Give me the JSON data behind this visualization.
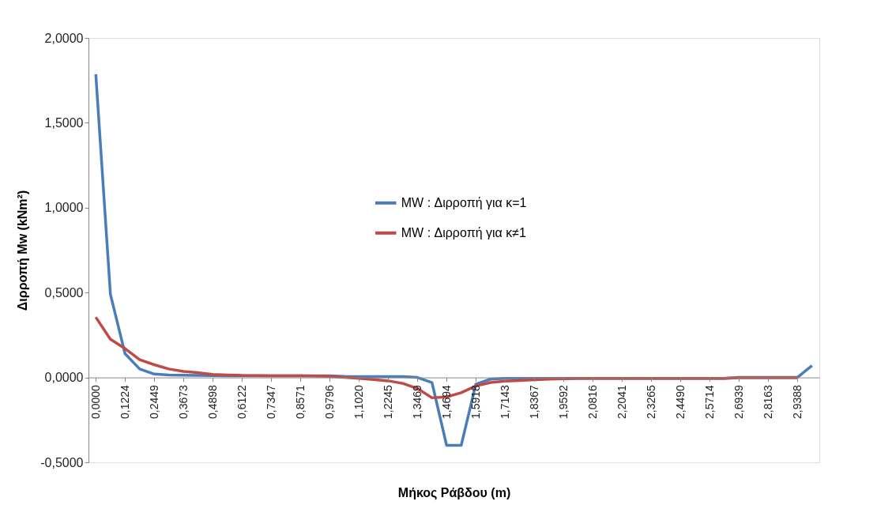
{
  "chart_data": {
    "type": "line",
    "xlabel": "Μήκος Ράβδου (m)",
    "ylabel": "Διρροπή Mw (kNm²)",
    "categories": [
      "0,0000",
      null,
      "0,1224",
      null,
      "0,2449",
      null,
      "0,3673",
      null,
      "0,4898",
      null,
      "0,6122",
      null,
      "0,7347",
      null,
      "0,8571",
      null,
      "0,9796",
      null,
      "1,1020",
      null,
      "1,2245",
      null,
      "1,3469",
      null,
      "1,4694",
      null,
      "1,5918",
      null,
      "1,7143",
      null,
      "1,8367",
      null,
      "1,9592",
      null,
      "2,0816",
      null,
      "2,2041",
      null,
      "2,3265",
      null,
      "2,4490",
      null,
      "2,5714",
      null,
      "2,6939",
      null,
      "2,8163",
      null,
      "2,9388",
      null
    ],
    "series": [
      {
        "name": "MW : Διρροπή για κ=1",
        "color": "#4a7ebb",
        "values": [
          1.786,
          0.49,
          0.14,
          0.05,
          0.02,
          0.015,
          0.013,
          0.012,
          0.011,
          0.01,
          0.01,
          0.01,
          0.01,
          0.01,
          0.01,
          0.01,
          0.01,
          0.006,
          0.005,
          0.005,
          0.005,
          0.005,
          0.0,
          -0.03,
          -0.4,
          -0.4,
          -0.04,
          -0.01,
          -0.005,
          -0.005,
          -0.005,
          -0.005,
          -0.005,
          -0.005,
          -0.005,
          -0.005,
          -0.005,
          -0.005,
          -0.005,
          -0.005,
          -0.005,
          -0.005,
          -0.005,
          -0.005,
          0,
          0,
          0,
          0,
          0,
          0.07
        ]
      },
      {
        "name": "MW : Διρροπή για κ≠1",
        "color": "#be4b48",
        "values": [
          0.355,
          0.225,
          0.17,
          0.105,
          0.075,
          0.05,
          0.035,
          0.028,
          0.018,
          0.015,
          0.012,
          0.011,
          0.01,
          0.01,
          0.01,
          0.009,
          0.006,
          0.0,
          -0.005,
          -0.012,
          -0.02,
          -0.035,
          -0.065,
          -0.12,
          -0.115,
          -0.09,
          -0.05,
          -0.03,
          -0.022,
          -0.018,
          -0.014,
          -0.01,
          -0.008,
          -0.005,
          -0.005,
          -0.005,
          -0.005,
          -0.005,
          -0.005,
          -0.005,
          -0.005,
          -0.005,
          -0.005,
          -0.005,
          -0.002,
          -0.002,
          -0.002,
          -0.002,
          -0.002,
          null
        ]
      }
    ],
    "ylim": [
      -0.5,
      2.0
    ],
    "yticks": [
      {
        "value": -0.5,
        "label": "-0,5000"
      },
      {
        "value": 0,
        "label": "0,0000"
      },
      {
        "value": 0.5,
        "label": "0,5000"
      },
      {
        "value": 1.0,
        "label": "1,0000"
      },
      {
        "value": 1.5,
        "label": "1,5000"
      },
      {
        "value": 2.0,
        "label": "2,0000"
      }
    ],
    "grid": false,
    "legend": "center",
    "marker": "none",
    "line_style": "solid"
  }
}
